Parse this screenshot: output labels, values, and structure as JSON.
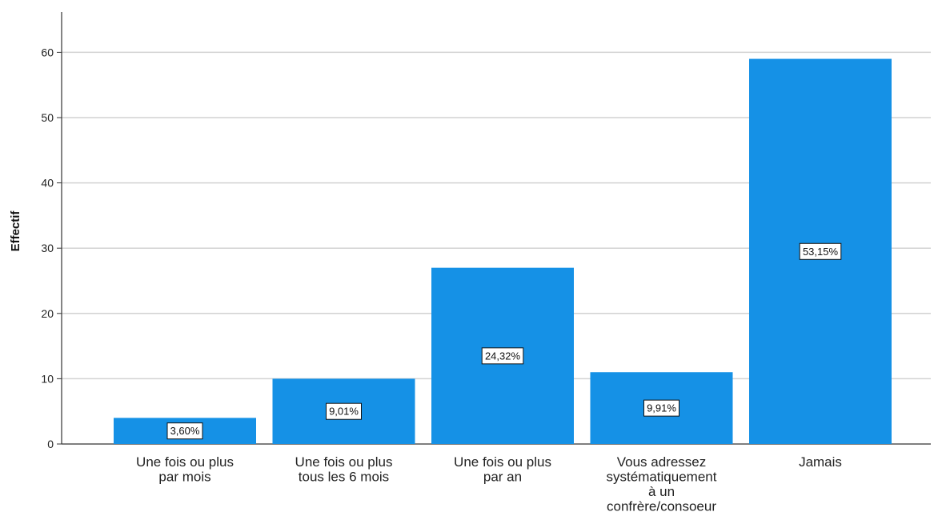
{
  "chart_data": {
    "type": "bar",
    "ylabel": "Effectif",
    "xlabel": "",
    "title": "",
    "ylim": [
      0,
      65
    ],
    "yticks": [
      0,
      10,
      20,
      30,
      40,
      50,
      60
    ],
    "grid": true,
    "legend": "none",
    "bar_color": "#1591e6",
    "categories": [
      [
        "Une fois ou plus",
        "par mois"
      ],
      [
        "Une fois ou plus",
        "tous les 6 mois"
      ],
      [
        "Une fois ou plus",
        "par an"
      ],
      [
        "Vous adressez",
        "systématiquement",
        "à un",
        "confrère/consoeur"
      ],
      [
        "Jamais"
      ]
    ],
    "values": [
      4,
      10,
      27,
      11,
      59
    ],
    "data_labels": [
      "3,60%",
      "9,01%",
      "24,32%",
      "9,91%",
      "53,15%"
    ]
  }
}
